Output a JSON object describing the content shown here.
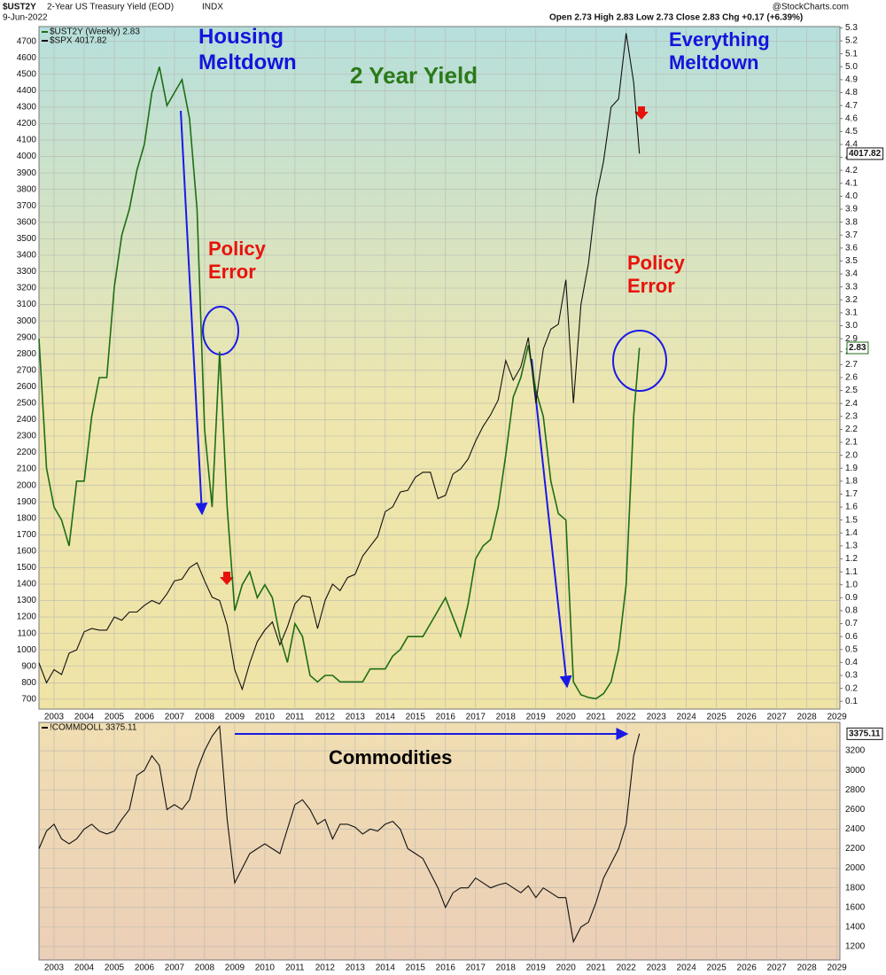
{
  "chart_data": [
    {
      "type": "line",
      "symbol": "$UST2Y",
      "description": "2-Year US Treasury Yield (EOD)",
      "exchange": "INDX",
      "date": "9-Jun-2022",
      "quote": "Open 2.73  High 2.83  Low 2.73  Close 2.83  Chg +0.17 (+6.39%)",
      "source": "@StockCharts.com",
      "annotations": [
        "Housing Meltdown",
        "2 Year Yield",
        "Policy Error",
        "Policy Error",
        "Everything Meltdown"
      ],
      "grid": true,
      "x": [
        2002.5,
        2002.75,
        2003,
        2003.25,
        2003.5,
        2003.75,
        2004,
        2004.25,
        2004.5,
        2004.75,
        2005,
        2005.25,
        2005.5,
        2005.75,
        2006,
        2006.25,
        2006.5,
        2006.75,
        2007,
        2007.25,
        2007.5,
        2007.75,
        2008,
        2008.25,
        2008.5,
        2008.75,
        2009,
        2009.25,
        2009.5,
        2009.75,
        2010,
        2010.25,
        2010.5,
        2010.75,
        2011,
        2011.25,
        2011.5,
        2011.75,
        2012,
        2012.25,
        2012.5,
        2012.75,
        2013,
        2013.25,
        2013.5,
        2013.75,
        2014,
        2014.25,
        2014.5,
        2014.75,
        2015,
        2015.25,
        2015.5,
        2015.75,
        2016,
        2016.25,
        2016.5,
        2016.75,
        2017,
        2017.25,
        2017.5,
        2017.75,
        2018,
        2018.25,
        2018.5,
        2018.75,
        2019,
        2019.25,
        2019.5,
        2019.75,
        2020,
        2020.25,
        2020.5,
        2020.75,
        2021,
        2021.25,
        2021.5,
        2021.75,
        2022,
        2022.25,
        2022.44
      ],
      "xlim": [
        2002.5,
        2029.1
      ],
      "xticks": [
        2003,
        2004,
        2005,
        2006,
        2007,
        2008,
        2009,
        2010,
        2011,
        2012,
        2013,
        2014,
        2015,
        2016,
        2017,
        2018,
        2019,
        2020,
        2021,
        2022,
        2023,
        2024,
        2025,
        2026,
        2027,
        2028,
        2029
      ],
      "ylim": [
        640,
        4790
      ],
      "yticks": [
        700,
        800,
        900,
        1000,
        1100,
        1200,
        1300,
        1400,
        1500,
        1600,
        1700,
        1800,
        1900,
        2000,
        2100,
        2200,
        2300,
        2400,
        2500,
        2600,
        2700,
        2800,
        2900,
        3000,
        3100,
        3200,
        3300,
        3400,
        3500,
        3600,
        3700,
        3800,
        3900,
        4000,
        4100,
        4200,
        4300,
        4400,
        4500,
        4600,
        4700
      ],
      "y2lim": [
        0.04,
        5.31
      ],
      "y2ticks": [
        0.1,
        0.2,
        0.3,
        0.4,
        0.5,
        0.6,
        0.7,
        0.8,
        0.9,
        {
          "value": 1,
          "label": "1.0"
        },
        1.1,
        1.2,
        1.3,
        1.4,
        1.5,
        1.6,
        1.7,
        1.8,
        1.9,
        {
          "value": 2,
          "label": "2.0"
        },
        2.1,
        2.2,
        2.3,
        2.4,
        2.5,
        2.6,
        2.7,
        2.8,
        2.9,
        {
          "value": 3,
          "label": "3.0"
        },
        3.1,
        3.2,
        3.3,
        3.4,
        3.5,
        3.6,
        3.7,
        3.8,
        3.9,
        {
          "value": 4,
          "label": "4.0"
        },
        4.1,
        4.2,
        4.3,
        4.4,
        4.5,
        4.6,
        4.7,
        4.8,
        4.9,
        {
          "value": 5,
          "label": "5.0"
        },
        5.1,
        5.2,
        5.3
      ],
      "series": [
        {
          "name": "$UST2Y (Weekly) 2.83",
          "color": "#1e6e14",
          "axis": "y2",
          "values": [
            2.9,
            1.9,
            1.6,
            1.5,
            1.3,
            1.8,
            1.8,
            2.3,
            2.6,
            2.6,
            3.3,
            3.7,
            3.9,
            4.2,
            4.4,
            4.8,
            5.0,
            4.7,
            4.8,
            4.9,
            4.6,
            3.9,
            2.2,
            1.6,
            2.8,
            1.6,
            0.8,
            1.0,
            1.1,
            0.9,
            1.0,
            0.9,
            0.6,
            0.4,
            0.7,
            0.6,
            0.3,
            0.25,
            0.3,
            0.3,
            0.25,
            0.25,
            0.25,
            0.25,
            0.35,
            0.35,
            0.35,
            0.45,
            0.5,
            0.6,
            0.6,
            0.6,
            0.7,
            0.8,
            0.9,
            0.75,
            0.6,
            0.85,
            1.2,
            1.3,
            1.35,
            1.6,
            2.0,
            2.45,
            2.6,
            2.85,
            2.5,
            2.3,
            1.8,
            1.55,
            1.5,
            0.25,
            0.15,
            0.13,
            0.12,
            0.16,
            0.25,
            0.5,
            1.0,
            2.3,
            2.83
          ]
        },
        {
          "name": "$SPX 4017.82",
          "color": "#111111",
          "axis": "y",
          "values": [
            920,
            800,
            880,
            850,
            980,
            1000,
            1110,
            1130,
            1120,
            1120,
            1200,
            1180,
            1230,
            1230,
            1270,
            1300,
            1280,
            1340,
            1420,
            1430,
            1500,
            1530,
            1420,
            1320,
            1300,
            1150,
            880,
            760,
            920,
            1050,
            1120,
            1170,
            1030,
            1140,
            1280,
            1330,
            1320,
            1130,
            1300,
            1400,
            1360,
            1440,
            1460,
            1570,
            1630,
            1690,
            1840,
            1870,
            1960,
            1970,
            2050,
            2080,
            2080,
            1920,
            1940,
            2070,
            2100,
            2160,
            2270,
            2360,
            2430,
            2520,
            2760,
            2640,
            2720,
            2900,
            2500,
            2830,
            2950,
            2980,
            3250,
            2500,
            3100,
            3350,
            3750,
            3970,
            4300,
            4350,
            4750,
            4450,
            4017.82
          ]
        }
      ]
    },
    {
      "type": "line",
      "annotations": [
        "Commodities"
      ],
      "yaxis_position": "right",
      "grid": true,
      "x": [
        2002.5,
        2002.75,
        2003,
        2003.25,
        2003.5,
        2003.75,
        2004,
        2004.25,
        2004.5,
        2004.75,
        2005,
        2005.25,
        2005.5,
        2005.75,
        2006,
        2006.25,
        2006.5,
        2006.75,
        2007,
        2007.25,
        2007.5,
        2007.75,
        2008,
        2008.25,
        2008.5,
        2008.75,
        2009,
        2009.25,
        2009.5,
        2009.75,
        2010,
        2010.25,
        2010.5,
        2010.75,
        2011,
        2011.25,
        2011.5,
        2011.75,
        2012,
        2012.25,
        2012.5,
        2012.75,
        2013,
        2013.25,
        2013.5,
        2013.75,
        2014,
        2014.25,
        2014.5,
        2014.75,
        2015,
        2015.25,
        2015.5,
        2015.75,
        2016,
        2016.25,
        2016.5,
        2016.75,
        2017,
        2017.25,
        2017.5,
        2017.75,
        2018,
        2018.25,
        2018.5,
        2018.75,
        2019,
        2019.25,
        2019.5,
        2019.75,
        2020,
        2020.25,
        2020.5,
        2020.75,
        2021,
        2021.25,
        2021.5,
        2021.75,
        2022,
        2022.25,
        2022.44
      ],
      "xlim": [
        2002.5,
        2029.1
      ],
      "xticks": [
        2003,
        2004,
        2005,
        2006,
        2007,
        2008,
        2009,
        2010,
        2011,
        2012,
        2013,
        2014,
        2015,
        2016,
        2017,
        2018,
        2019,
        2020,
        2021,
        2022,
        2023,
        2024,
        2025,
        2026,
        2027,
        2028,
        2029
      ],
      "ylim": [
        1064,
        3490
      ],
      "yticks": [
        1200,
        1400,
        1600,
        1800,
        2000,
        2200,
        2400,
        2600,
        2800,
        3000,
        3200
      ],
      "series": [
        {
          "name": "!COMMDOLL 3375.11",
          "color": "#111111",
          "axis": "y",
          "values": [
            2200,
            2380,
            2450,
            2300,
            2250,
            2300,
            2400,
            2450,
            2380,
            2350,
            2380,
            2500,
            2600,
            2950,
            3000,
            3150,
            3050,
            2600,
            2650,
            2600,
            2700,
            3000,
            3200,
            3350,
            3450,
            2500,
            1850,
            2000,
            2150,
            2200,
            2250,
            2200,
            2150,
            2400,
            2650,
            2700,
            2600,
            2450,
            2500,
            2300,
            2450,
            2450,
            2420,
            2350,
            2400,
            2380,
            2450,
            2480,
            2400,
            2200,
            2150,
            2100,
            1950,
            1800,
            1600,
            1750,
            1800,
            1800,
            1900,
            1850,
            1800,
            1830,
            1850,
            1800,
            1750,
            1820,
            1700,
            1800,
            1750,
            1700,
            1700,
            1250,
            1400,
            1450,
            1650,
            1900,
            2050,
            2200,
            2450,
            3150,
            3375.11
          ]
        }
      ]
    }
  ]
}
